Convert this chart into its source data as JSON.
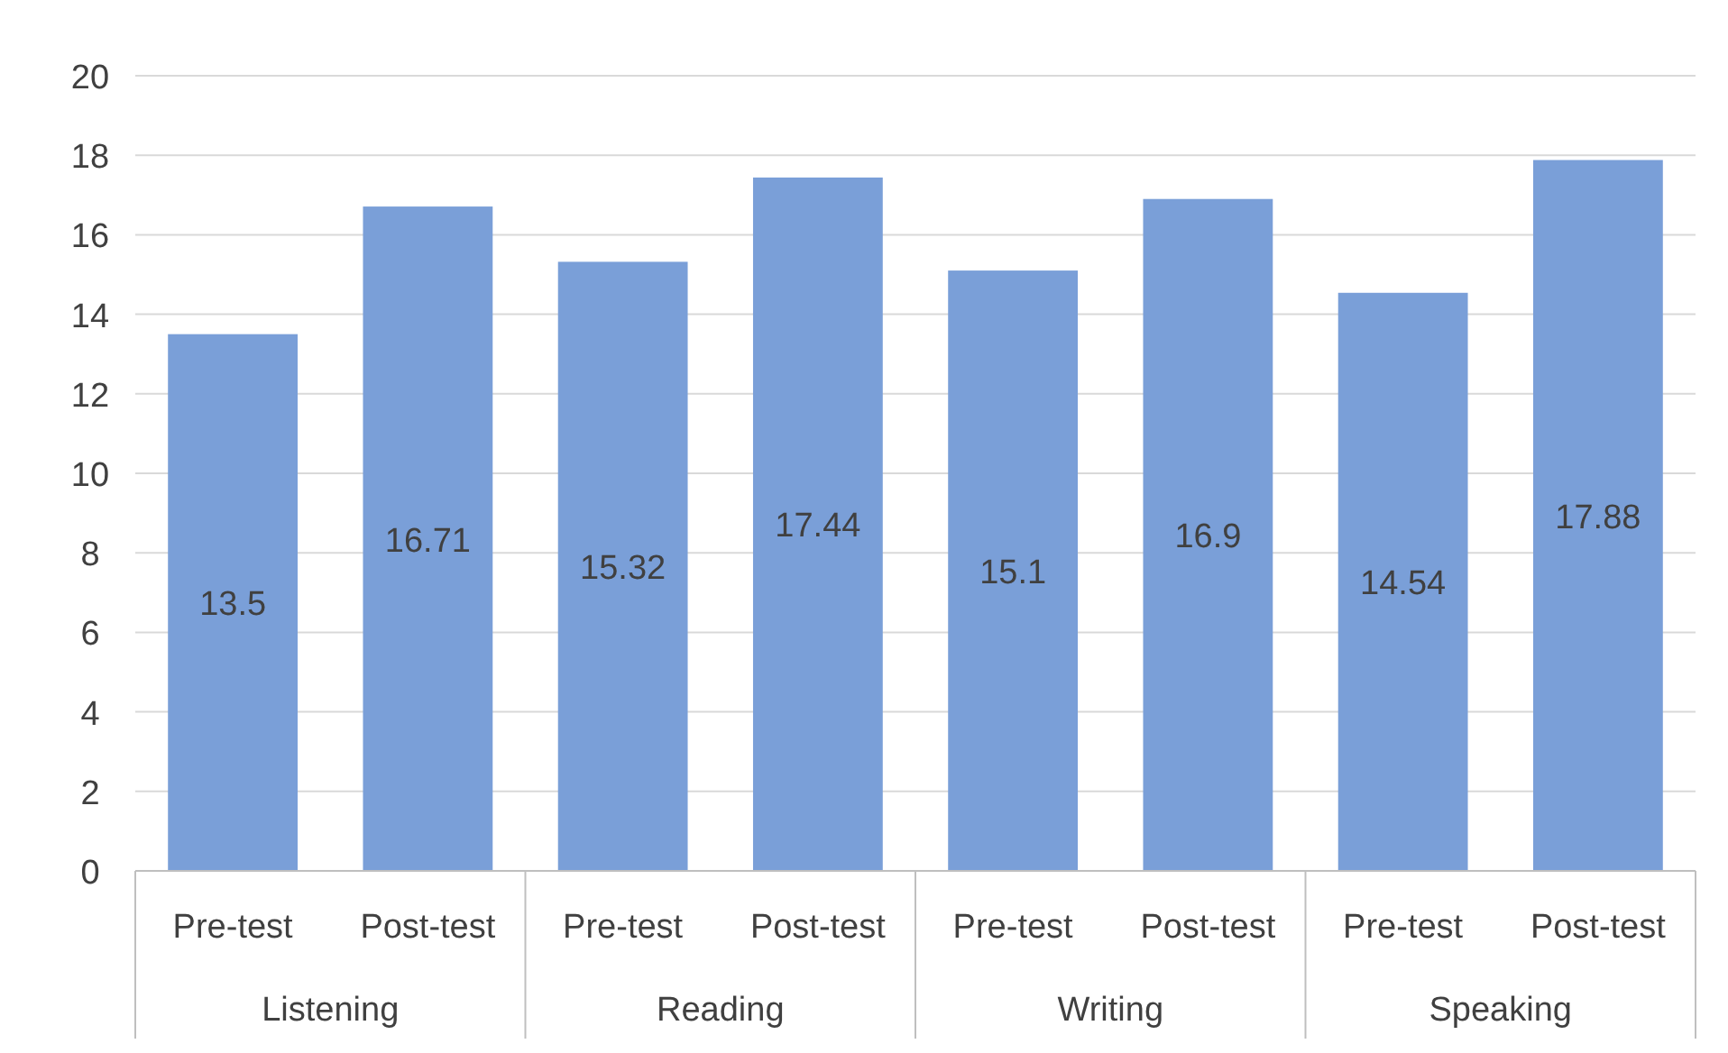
{
  "chart_data": {
    "type": "bar",
    "categories": [
      "Pre-test",
      "Post-test",
      "Pre-test",
      "Post-test",
      "Pre-test",
      "Post-test",
      "Pre-test",
      "Post-test"
    ],
    "values": [
      13.5,
      16.71,
      15.32,
      17.44,
      15.1,
      16.9,
      14.54,
      17.88
    ],
    "color": "#7a9fd8",
    "ylim": [
      0,
      20
    ],
    "yticks": [
      0,
      2,
      4,
      6,
      8,
      10,
      12,
      14,
      16,
      18,
      20
    ],
    "grid": "y",
    "data_labels": true,
    "annotations": [
      "Listening",
      "Reading",
      "Writing",
      "Speaking"
    ]
  }
}
